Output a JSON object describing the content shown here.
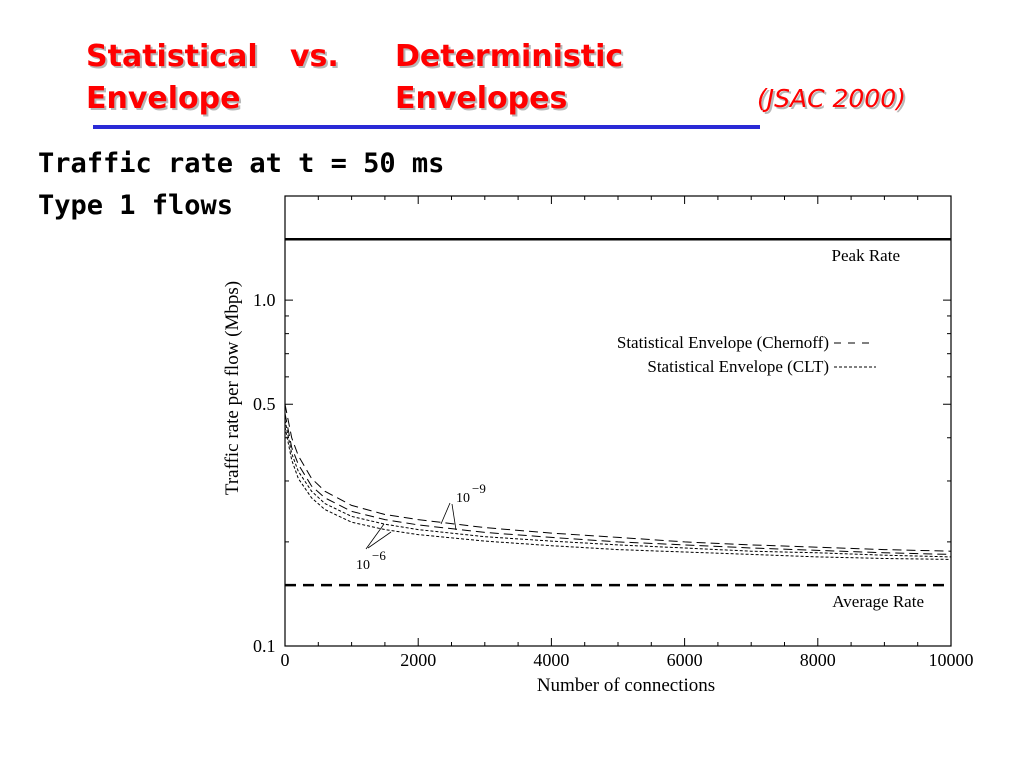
{
  "slide": {
    "title_line1_left": "Statistical",
    "title_line1_mid": "vs.",
    "title_line1_right": "Deterministic",
    "title_line2_left": "Envelope",
    "title_line2_right": "Envelopes",
    "reference": "(JSAC 2000)",
    "subtitle1": "Traffic rate at t = 50 ms",
    "subtitle2": "Type 1 flows",
    "accent_color": "#ff0000",
    "rule_color": "#2a2ad6"
  },
  "chart_data": {
    "type": "line",
    "xlabel": "Number of connections",
    "ylabel": "Traffic rate per flow (Mbps)",
    "xlim": [
      0,
      10000
    ],
    "ylim": [
      0.1,
      2.0
    ],
    "yscale": "log",
    "xticks": [
      0,
      2000,
      4000,
      6000,
      8000,
      10000
    ],
    "xtick_labels": [
      "0",
      "2000",
      "4000",
      "6000",
      "8000",
      "10000"
    ],
    "yticks": [
      0.1,
      0.5,
      1.0
    ],
    "ytick_labels": [
      "0.1",
      "0.5",
      "1.0"
    ],
    "legend": [
      {
        "label": "Statistical Envelope (Chernoff)",
        "style": "dashed"
      },
      {
        "label": "Statistical Envelope (CLT)",
        "style": "dotted"
      }
    ],
    "reference_lines": [
      {
        "label": "Peak Rate",
        "y": 1.5,
        "style": "solid"
      },
      {
        "label": "Average Rate",
        "y": 0.15,
        "style": "dashed"
      }
    ],
    "annotations": [
      {
        "base": "10",
        "exponent": "−9",
        "x": 2700,
        "y": 0.235
      },
      {
        "base": "10",
        "exponent": "−6",
        "x": 1400,
        "y": 0.185
      }
    ],
    "series": [
      {
        "name": "Chernoff 10^-9",
        "style": "dashed",
        "x": [
          0,
          100,
          200,
          400,
          600,
          1000,
          1500,
          2000,
          3000,
          4000,
          5000,
          6000,
          7000,
          8000,
          9000,
          10000
        ],
        "y": [
          0.5,
          0.4,
          0.355,
          0.305,
          0.28,
          0.255,
          0.24,
          0.232,
          0.22,
          0.212,
          0.206,
          0.2,
          0.196,
          0.193,
          0.19,
          0.188
        ]
      },
      {
        "name": "Chernoff 10^-6",
        "style": "dashed",
        "x": [
          0,
          100,
          200,
          400,
          600,
          1000,
          1500,
          2000,
          3000,
          4000,
          5000,
          6000,
          7000,
          8000,
          9000,
          10000
        ],
        "y": [
          0.47,
          0.375,
          0.335,
          0.29,
          0.268,
          0.245,
          0.232,
          0.224,
          0.213,
          0.206,
          0.2,
          0.196,
          0.192,
          0.189,
          0.186,
          0.184
        ]
      },
      {
        "name": "CLT 10^-9",
        "style": "dotted",
        "x": [
          0,
          100,
          200,
          400,
          600,
          1000,
          1500,
          2000,
          3000,
          4000,
          5000,
          6000,
          7000,
          8000,
          9000,
          10000
        ],
        "y": [
          0.45,
          0.36,
          0.32,
          0.28,
          0.258,
          0.237,
          0.225,
          0.217,
          0.207,
          0.201,
          0.196,
          0.192,
          0.188,
          0.186,
          0.183,
          0.181
        ]
      },
      {
        "name": "CLT 10^-6",
        "style": "dotted",
        "x": [
          0,
          100,
          200,
          400,
          600,
          1000,
          1500,
          2000,
          3000,
          4000,
          5000,
          6000,
          7000,
          8000,
          9000,
          10000
        ],
        "y": [
          0.43,
          0.345,
          0.305,
          0.268,
          0.248,
          0.228,
          0.217,
          0.21,
          0.201,
          0.195,
          0.19,
          0.187,
          0.184,
          0.181,
          0.179,
          0.178
        ]
      }
    ]
  }
}
